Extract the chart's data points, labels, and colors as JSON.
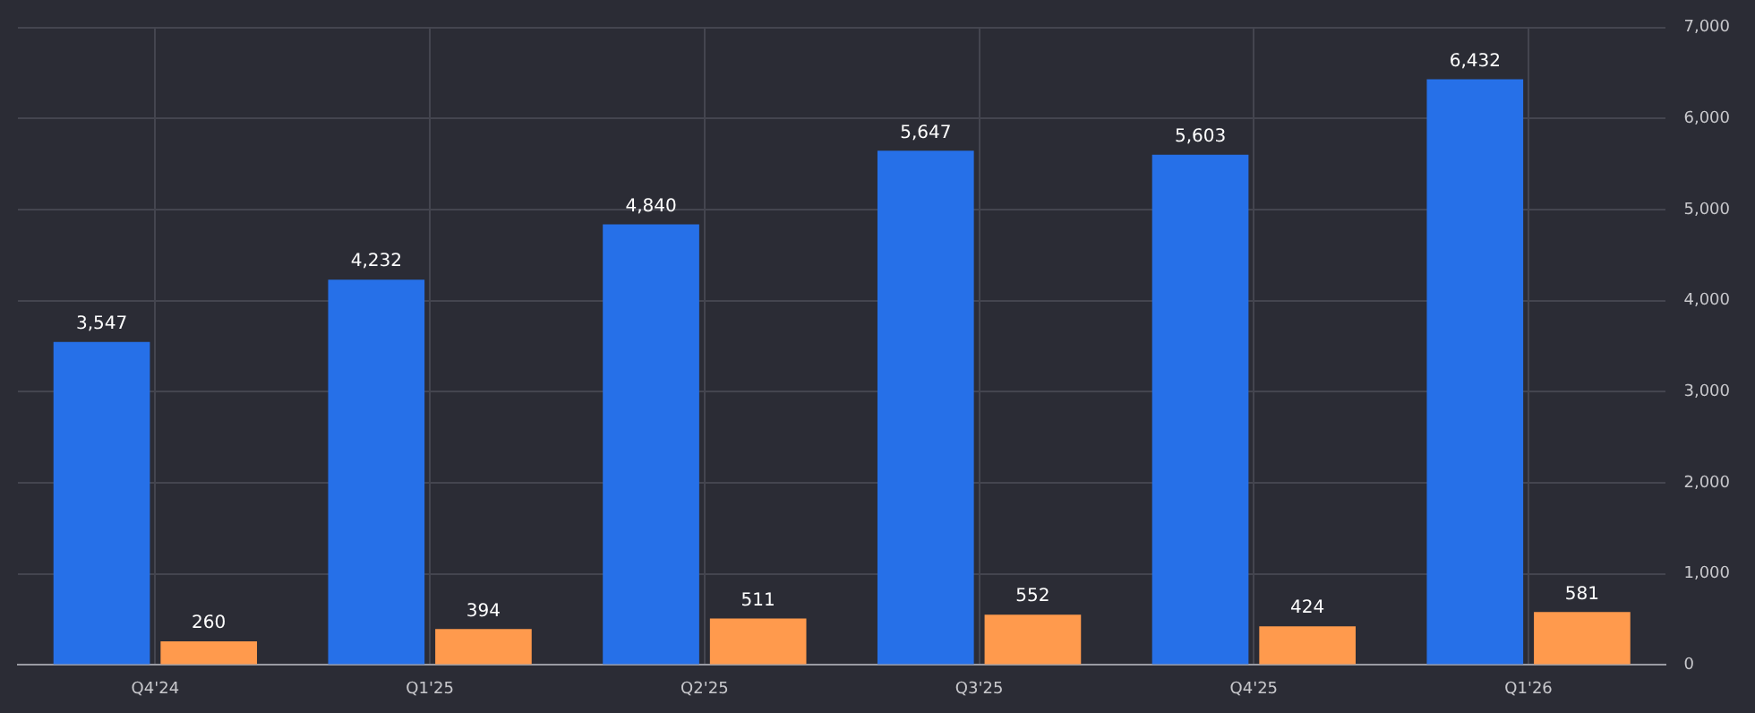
{
  "chart_data": {
    "type": "bar",
    "categories": [
      "Q4'24",
      "Q1'25",
      "Q2'25",
      "Q3'25",
      "Q4'25",
      "Q1'26"
    ],
    "series": [
      {
        "color": "#2670e8",
        "values": [
          3547,
          4232,
          4840,
          5647,
          5603,
          6432
        ],
        "value_labels": [
          "3,547",
          "4,232",
          "4,840",
          "5,647",
          "5,603",
          "6,432"
        ]
      },
      {
        "color": "#ff9a4d",
        "values": [
          260,
          394,
          511,
          552,
          424,
          581
        ],
        "value_labels": [
          "260",
          "394",
          "511",
          "552",
          "424",
          "581"
        ]
      }
    ],
    "ylim": [
      0,
      7000
    ],
    "yticks": [
      {
        "value": 0,
        "label": "0"
      },
      {
        "value": 1000,
        "label": "1,000"
      },
      {
        "value": 2000,
        "label": "2,000"
      },
      {
        "value": 3000,
        "label": "3,000"
      },
      {
        "value": 4000,
        "label": "4,000"
      },
      {
        "value": 5000,
        "label": "5,000"
      },
      {
        "value": 6000,
        "label": "6,000"
      },
      {
        "value": 7000,
        "label": "7,000"
      }
    ],
    "grid": true
  }
}
